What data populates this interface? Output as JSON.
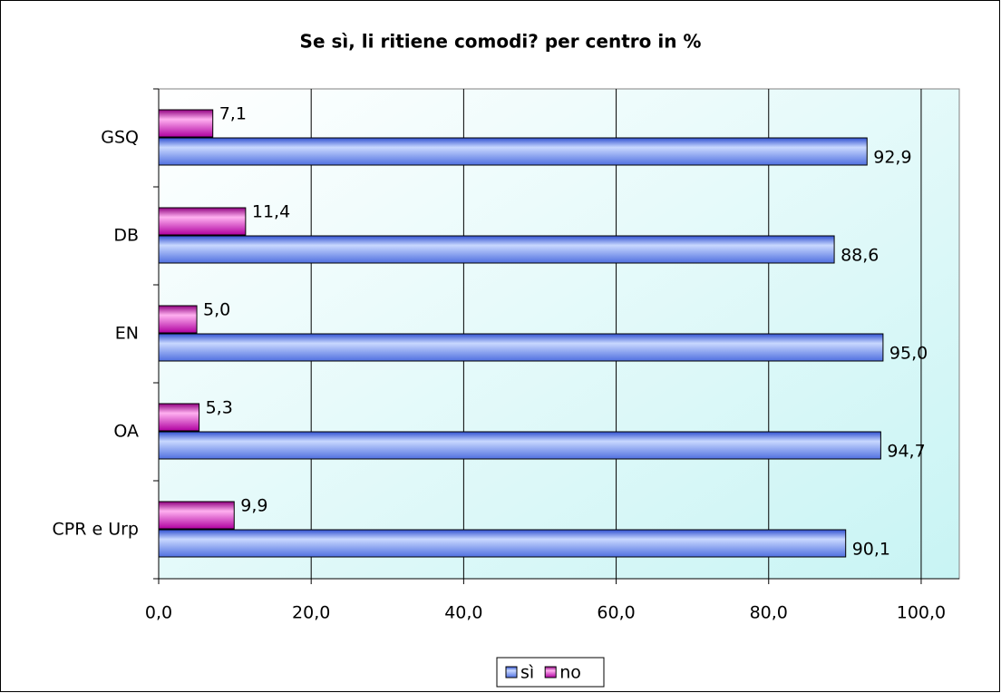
{
  "chart_data": {
    "type": "hbar",
    "title": "Se sì, li ritiene comodi? per centro in %",
    "categories": [
      "GSQ",
      "DB",
      "EN",
      "OA",
      "CPR e Urp"
    ],
    "series": [
      {
        "name": "sì",
        "color": "#6f8fef",
        "values": [
          92.9,
          88.6,
          95.0,
          94.7,
          90.1
        ],
        "value_labels": [
          "92,9",
          "88,6",
          "95,0",
          "94,7",
          "90,1"
        ]
      },
      {
        "name": "no",
        "color": "#d020c0",
        "values": [
          7.1,
          11.4,
          5.0,
          5.3,
          9.9
        ],
        "value_labels": [
          "7,1",
          "11,4",
          "5,0",
          "5,3",
          "9,9"
        ]
      }
    ],
    "xlim": [
      0,
      105
    ],
    "xticks": [
      {
        "value": 0,
        "label": "0,0"
      },
      {
        "value": 20,
        "label": "20,0"
      },
      {
        "value": 40,
        "label": "40,0"
      },
      {
        "value": 60,
        "label": "60,0"
      },
      {
        "value": 80,
        "label": "80,0"
      },
      {
        "value": 100,
        "label": "100,0"
      }
    ],
    "grid": true,
    "legend": "bottom"
  }
}
